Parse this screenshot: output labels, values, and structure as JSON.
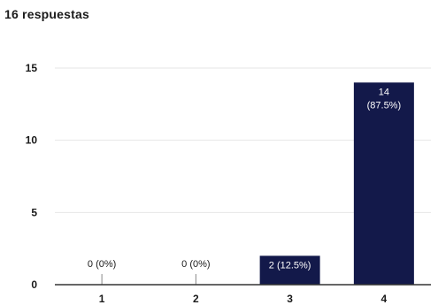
{
  "header": {
    "response_count": "16 respuestas"
  },
  "chart_data": {
    "type": "bar",
    "title": "",
    "xlabel": "",
    "ylabel": "",
    "categories": [
      "1",
      "2",
      "3",
      "4"
    ],
    "values": [
      0,
      0,
      2,
      14
    ],
    "data_labels": [
      {
        "line1": "0 (0%)",
        "line2": ""
      },
      {
        "line1": "0 (0%)",
        "line2": ""
      },
      {
        "line1": "2 (12.5%)",
        "line2": ""
      },
      {
        "line1": "14",
        "line2": "(87.5%)"
      }
    ],
    "ylim": [
      0,
      15
    ],
    "yticks": [
      0,
      5,
      10,
      15
    ],
    "grid": true,
    "bar_color": "#13194a",
    "gridline_color": "#e6e6e6",
    "axis_color": "#333333"
  }
}
